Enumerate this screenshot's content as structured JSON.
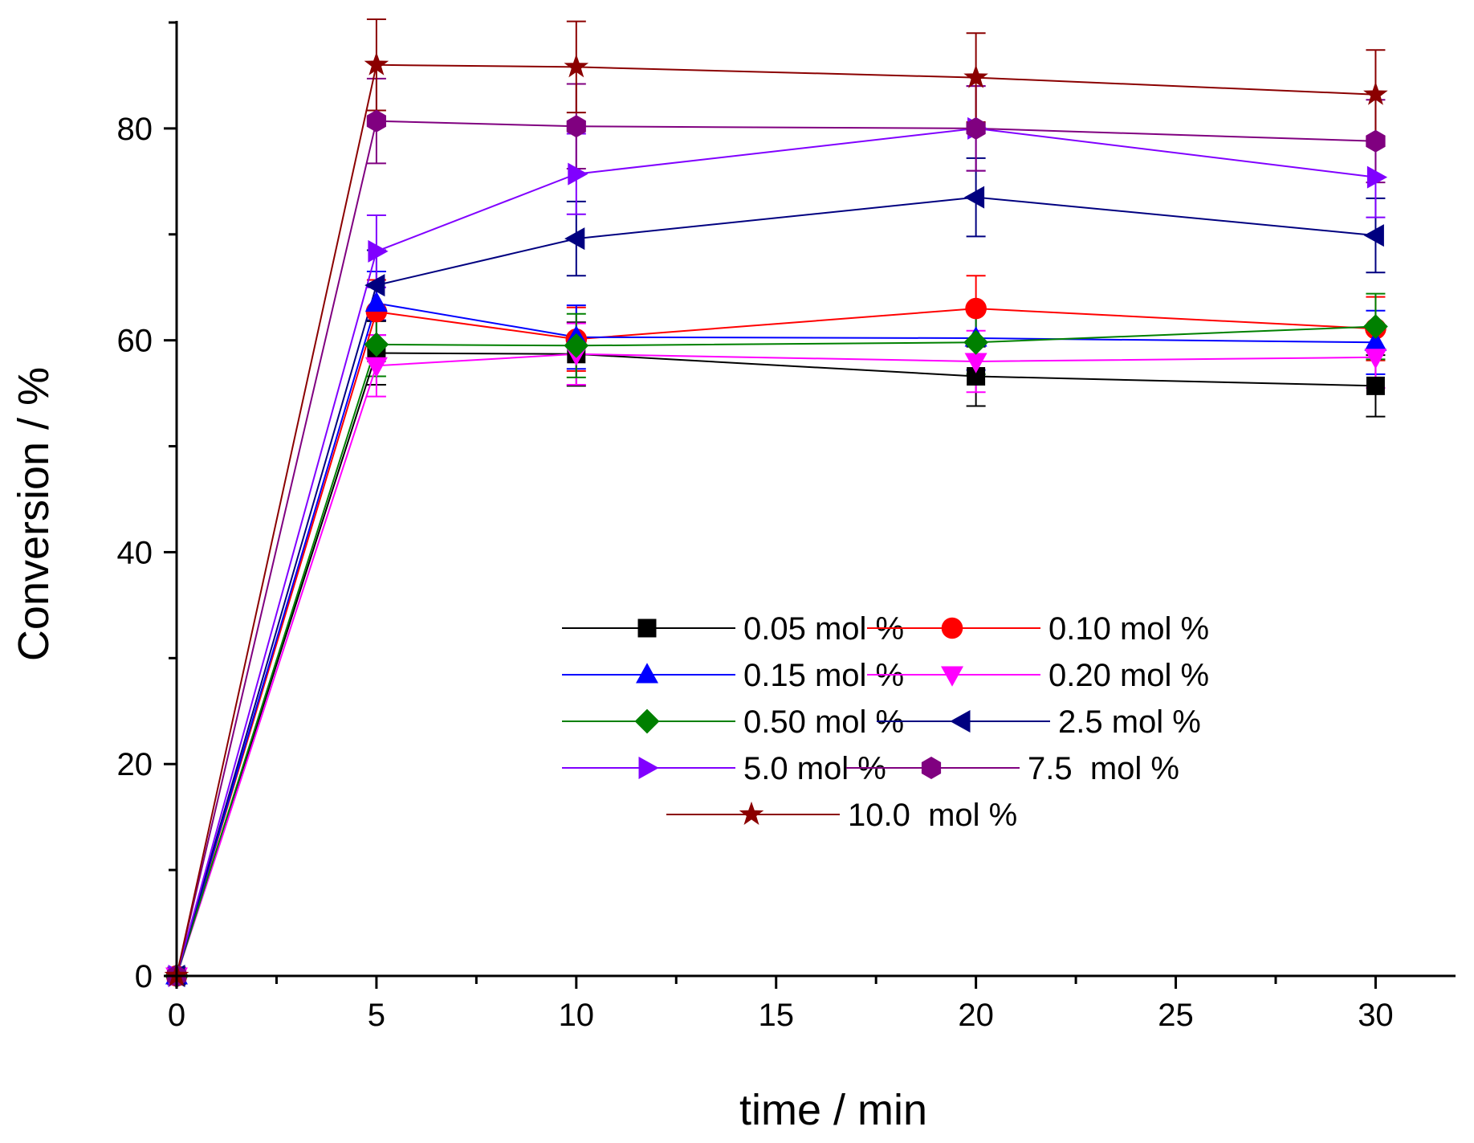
{
  "chart_data": {
    "type": "line",
    "title": "",
    "xlabel": "time / min",
    "ylabel": "Conversion / %",
    "xlim": [
      0,
      32
    ],
    "ylim": [
      0,
      90
    ],
    "x_ticks": [
      0,
      5,
      10,
      15,
      20,
      25,
      30
    ],
    "y_ticks": [
      0,
      20,
      40,
      60,
      80
    ],
    "x": [
      0,
      5,
      10,
      20,
      30
    ],
    "series": [
      {
        "name": "0.05 mol %",
        "color": "#000000",
        "marker": "square",
        "values": [
          0,
          58.8,
          58.7,
          56.6,
          55.7
        ],
        "errors": [
          0,
          3.0,
          3.0,
          2.8,
          2.9
        ]
      },
      {
        "name": "0.10 mol %",
        "color": "#ff0000",
        "marker": "circle",
        "values": [
          0,
          62.7,
          60.1,
          63.0,
          61.1
        ],
        "errors": [
          0,
          3.0,
          3.0,
          3.1,
          3.0
        ]
      },
      {
        "name": "0.15 mol %",
        "color": "#0000ff",
        "marker": "triangle-up",
        "values": [
          0,
          63.5,
          60.3,
          60.2,
          59.8
        ],
        "errors": [
          0,
          3.0,
          3.0,
          3.0,
          3.0
        ]
      },
      {
        "name": "0.20 mol %",
        "color": "#ff00ff",
        "marker": "triangle-down",
        "values": [
          0,
          57.6,
          58.7,
          58.0,
          58.4
        ],
        "errors": [
          0,
          2.9,
          2.9,
          2.9,
          2.9
        ]
      },
      {
        "name": "0.50 mol %",
        "color": "#008000",
        "marker": "diamond",
        "values": [
          0,
          59.6,
          59.5,
          59.8,
          61.3
        ],
        "errors": [
          0,
          3.0,
          3.0,
          3.0,
          3.1
        ]
      },
      {
        "name": "2.5 mol %",
        "color": "#000080",
        "marker": "triangle-left",
        "values": [
          0,
          65.2,
          69.6,
          73.5,
          69.9
        ],
        "errors": [
          0,
          3.3,
          3.5,
          3.7,
          3.5
        ]
      },
      {
        "name": "5.0 mol %",
        "color": "#8000ff",
        "marker": "triangle-right",
        "values": [
          0,
          68.4,
          75.7,
          80.0,
          75.4
        ],
        "errors": [
          0,
          3.4,
          3.8,
          4.0,
          3.8
        ]
      },
      {
        "name": "7.5  mol %",
        "color": "#800080",
        "marker": "hexagon",
        "values": [
          0,
          80.7,
          80.2,
          80.0,
          78.8
        ],
        "errors": [
          0,
          4.0,
          4.0,
          4.0,
          3.9
        ]
      },
      {
        "name": "10.0  mol %",
        "color": "#8b0000",
        "marker": "star",
        "values": [
          0,
          86.0,
          85.8,
          84.8,
          83.2
        ],
        "errors": [
          0,
          4.3,
          4.3,
          4.2,
          4.2
        ]
      }
    ]
  }
}
